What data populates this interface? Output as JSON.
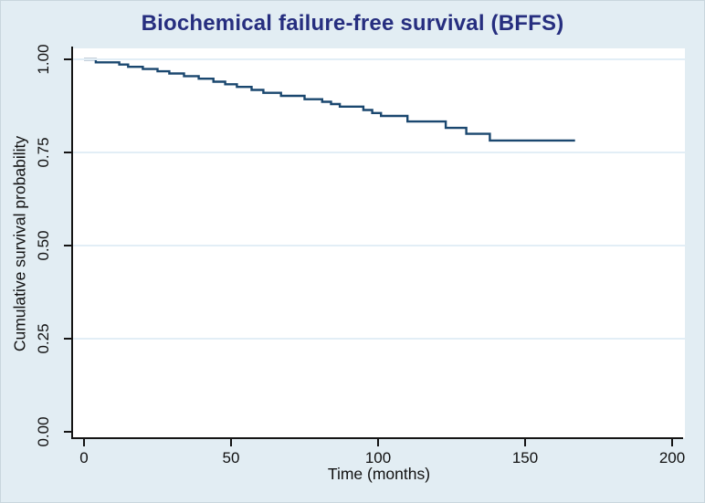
{
  "figure": {
    "title": "Biochemical failure-free survival (BFFS)"
  },
  "chart_data": {
    "type": "line",
    "subtype": "kaplan-meier-step-curve",
    "title": "Biochemical failure-free survival (BFFS)",
    "xlabel": "Time (months)",
    "ylabel": "Cumulative survival probability",
    "xlim": [
      0,
      200
    ],
    "ylim": [
      0.0,
      1.0
    ],
    "x_ticks": {
      "values": [
        0,
        50,
        100,
        150,
        200
      ],
      "labels": [
        "0",
        "50",
        "100",
        "150",
        "200"
      ]
    },
    "y_ticks": {
      "values": [
        0,
        0.25,
        0.5,
        0.75,
        1
      ],
      "labels": [
        "0.00",
        "0.25",
        "0.50",
        "0.75",
        "1.00"
      ]
    },
    "grid": "horizontal-gridlines-at-y-ticks",
    "legend": "none",
    "colors": {
      "curve": "#1a476f",
      "title": "#262e7f",
      "background": "#e2edf3",
      "plot_background": "#ffffff",
      "gridline": "#e2eef6",
      "axis": "#141414"
    },
    "series": [
      {
        "name": "BFFS",
        "step_times": [
          0,
          4,
          12,
          15,
          20,
          25,
          29,
          34,
          39,
          44,
          48,
          52,
          57,
          61,
          67,
          75,
          81,
          84,
          87,
          95,
          98,
          101,
          110,
          123,
          130,
          138
        ],
        "step_survival": [
          1.0,
          0.992,
          0.986,
          0.98,
          0.974,
          0.968,
          0.962,
          0.955,
          0.948,
          0.94,
          0.933,
          0.926,
          0.918,
          0.91,
          0.902,
          0.893,
          0.886,
          0.88,
          0.873,
          0.864,
          0.856,
          0.848,
          0.833,
          0.816,
          0.8,
          0.782
        ],
        "end_time": 167,
        "final_survival": 0.782
      }
    ]
  }
}
